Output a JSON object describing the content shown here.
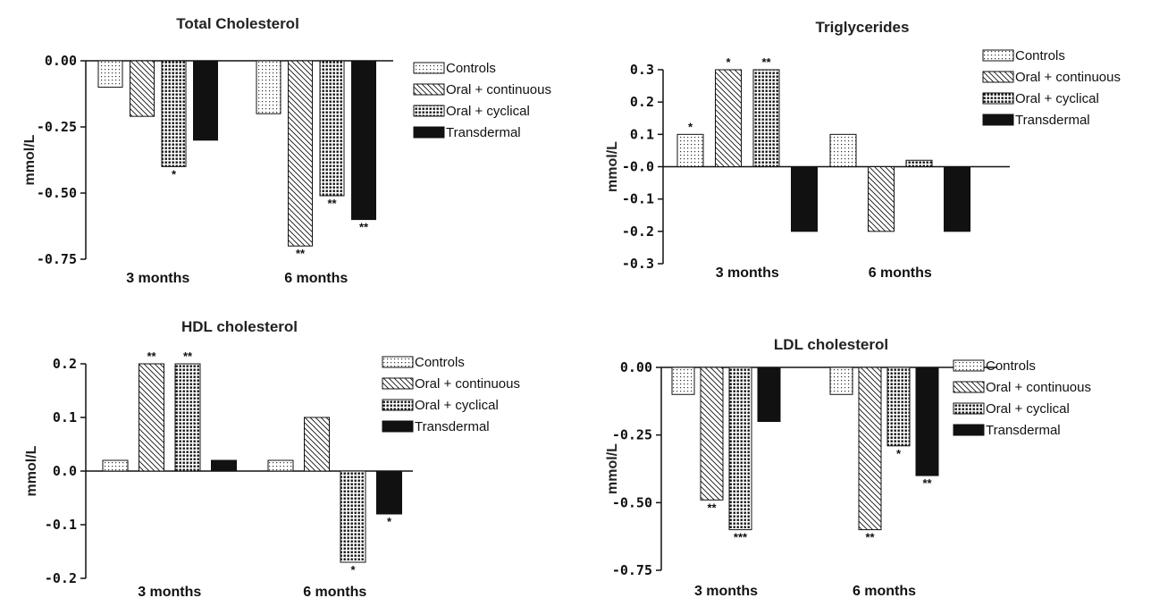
{
  "legend_labels": [
    "Controls",
    "Oral + continuous",
    "Oral + cyclical",
    "Transdermal"
  ],
  "chart_data": [
    {
      "type": "bar",
      "title": "Total Cholesterol",
      "ylabel": "mmol/L",
      "categories": [
        "3 months",
        "6 months"
      ],
      "ylim": [
        -0.75,
        0.0
      ],
      "yticks": [
        "0.00",
        "-0.25",
        "-0.50",
        "-0.75"
      ],
      "series": [
        {
          "name": "Controls",
          "pattern": "dots",
          "values": [
            -0.1,
            -0.2
          ],
          "marks": [
            "",
            ""
          ]
        },
        {
          "name": "Oral + continuous",
          "pattern": "hatch",
          "values": [
            -0.21,
            -0.7
          ],
          "marks": [
            "",
            "**"
          ]
        },
        {
          "name": "Oral + cyclical",
          "pattern": "grid",
          "values": [
            -0.4,
            -0.51
          ],
          "marks": [
            "*",
            "**"
          ]
        },
        {
          "name": "Transdermal",
          "pattern": "solid",
          "values": [
            -0.3,
            -0.6
          ],
          "marks": [
            "",
            "**"
          ]
        }
      ]
    },
    {
      "type": "bar",
      "title": "Triglycerides",
      "ylabel": "mmol/L",
      "categories": [
        "3 months",
        "6 months"
      ],
      "ylim": [
        -0.3,
        0.3
      ],
      "yticks": [
        "0.3",
        "0.2",
        "0.1",
        "-0.0",
        "-0.1",
        "-0.2",
        "-0.3"
      ],
      "series": [
        {
          "name": "Controls",
          "pattern": "dots",
          "values": [
            0.1,
            0.1
          ],
          "marks": [
            "*",
            ""
          ]
        },
        {
          "name": "Oral + continuous",
          "pattern": "hatch",
          "values": [
            0.3,
            -0.2
          ],
          "marks": [
            "*",
            ""
          ]
        },
        {
          "name": "Oral + cyclical",
          "pattern": "grid",
          "values": [
            0.3,
            0.02
          ],
          "marks": [
            "**",
            ""
          ]
        },
        {
          "name": "Transdermal",
          "pattern": "solid",
          "values": [
            -0.2,
            -0.2
          ],
          "marks": [
            "",
            ""
          ]
        }
      ]
    },
    {
      "type": "bar",
      "title": "HDL cholesterol",
      "ylabel": "mmol/L",
      "categories": [
        "3 months",
        "6 months"
      ],
      "ylim": [
        -0.2,
        0.2
      ],
      "yticks": [
        "0.2",
        "0.1",
        "0.0",
        "-0.1",
        "-0.2"
      ],
      "series": [
        {
          "name": "Controls",
          "pattern": "dots",
          "values": [
            0.02,
            0.02
          ],
          "marks": [
            "",
            ""
          ]
        },
        {
          "name": "Oral + continuous",
          "pattern": "hatch",
          "values": [
            0.2,
            0.1
          ],
          "marks": [
            "**",
            ""
          ]
        },
        {
          "name": "Oral + cyclical",
          "pattern": "grid",
          "values": [
            0.2,
            -0.17
          ],
          "marks": [
            "**",
            "*"
          ]
        },
        {
          "name": "Transdermal",
          "pattern": "solid",
          "values": [
            0.02,
            -0.08
          ],
          "marks": [
            "",
            "*"
          ]
        }
      ]
    },
    {
      "type": "bar",
      "title": "LDL cholesterol",
      "ylabel": "mmol/L",
      "categories": [
        "3 months",
        "6 months"
      ],
      "ylim": [
        -0.75,
        0.0
      ],
      "yticks": [
        "0.00",
        "-0.25",
        "-0.50",
        "-0.75"
      ],
      "series": [
        {
          "name": "Controls",
          "pattern": "dots",
          "values": [
            -0.1,
            -0.1
          ],
          "marks": [
            "",
            ""
          ]
        },
        {
          "name": "Oral + continuous",
          "pattern": "hatch",
          "values": [
            -0.49,
            -0.6
          ],
          "marks": [
            "**",
            "**"
          ]
        },
        {
          "name": "Oral + cyclical",
          "pattern": "grid",
          "values": [
            -0.6,
            -0.29
          ],
          "marks": [
            "***",
            "*"
          ]
        },
        {
          "name": "Transdermal",
          "pattern": "solid",
          "values": [
            -0.2,
            -0.4
          ],
          "marks": [
            "",
            "**"
          ]
        }
      ]
    }
  ]
}
